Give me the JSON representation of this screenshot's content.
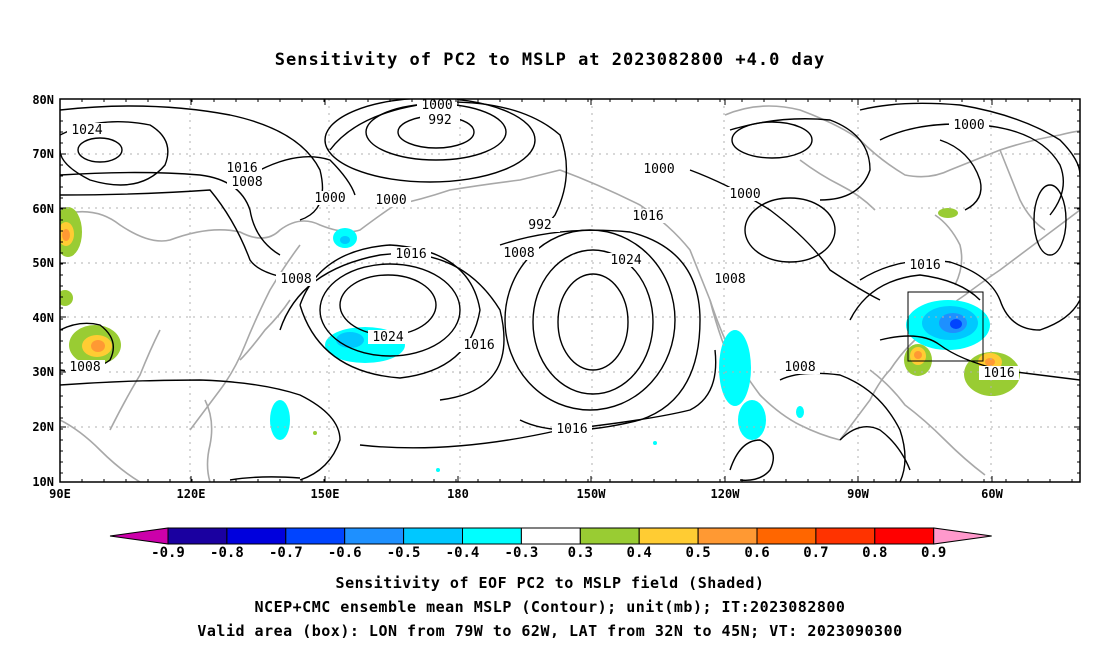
{
  "title": "Sensitivity of PC2 to MSLP at 2023082800 +4.0 day",
  "axes": {
    "x_ticks": [
      "90E",
      "120E",
      "150E",
      "180",
      "150W",
      "120W",
      "90W",
      "60W"
    ],
    "y_ticks": [
      "80N",
      "70N",
      "60N",
      "50N",
      "40N",
      "30N",
      "20N",
      "10N"
    ]
  },
  "map_extent": {
    "lon_min_east": 90,
    "lon_max_east": 325,
    "lat_min": 10,
    "lat_max": 80
  },
  "valid_box": {
    "lon_west": 79,
    "lon_east": 62,
    "lat_south": 32,
    "lat_north": 45
  },
  "contour_labels": [
    "1000",
    "992",
    "1024",
    "1016",
    "1008",
    "1000",
    "1000",
    "992",
    "1000",
    "1016",
    "1008",
    "1000",
    "1000",
    "1016",
    "1024",
    "1008",
    "1008",
    "1024",
    "1016",
    "1016",
    "1008",
    "1016",
    "1016",
    "1008"
  ],
  "colorbar": {
    "labels": [
      "-0.9",
      "-0.8",
      "-0.7",
      "-0.6",
      "-0.5",
      "-0.4",
      "-0.3",
      "0.3",
      "0.4",
      "0.5",
      "0.6",
      "0.7",
      "0.8",
      "0.9"
    ],
    "colors": [
      "#cc00aa",
      "#1a00a0",
      "#0000dd",
      "#0044ff",
      "#1e90ff",
      "#00c8ff",
      "#00ffff",
      "#ffffff",
      "#99cc33",
      "#ffcc33",
      "#ff9933",
      "#ff6600",
      "#ff3300",
      "#ff0000",
      "#ff99cc"
    ]
  },
  "captions": [
    "Sensitivity of EOF PC2 to MSLP field (Shaded)",
    "NCEP+CMC ensemble mean MSLP (Contour); unit(mb); IT:2023082800",
    "Valid area (box): LON from 79W to 62W, LAT from 32N to 45N; VT: 2023090300"
  ]
}
